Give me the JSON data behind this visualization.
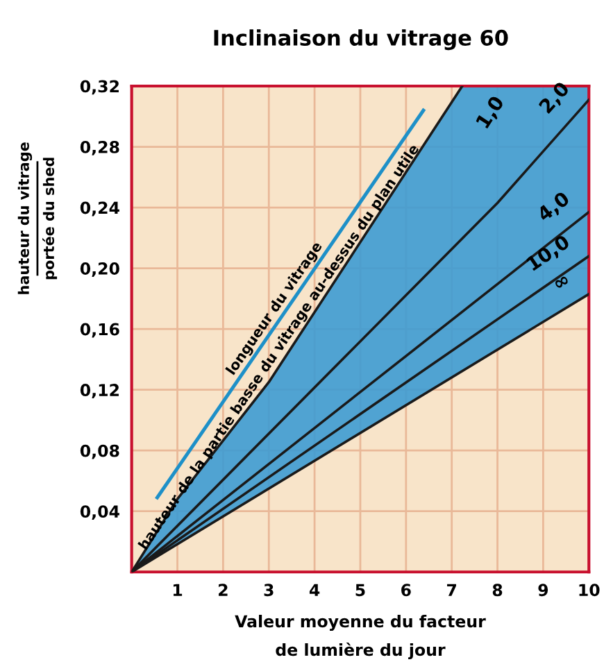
{
  "chart_data": {
    "type": "line",
    "title": "Inclinaison du vitrage 60",
    "xlabel": "Valeur moyenne du facteur\nde lumière du jour",
    "ylabel": "hauteur du vitrage\nportée du shed",
    "xlim": [
      0,
      10
    ],
    "ylim": [
      0,
      0.32
    ],
    "xticks": [
      {
        "value": 0,
        "label": null
      },
      1,
      2,
      3,
      4,
      5,
      6,
      7,
      8,
      9,
      10
    ],
    "yticks": [
      {
        "value": 0,
        "label": null
      },
      {
        "value": 0.04,
        "label": "0,04"
      },
      {
        "value": 0.08,
        "label": "0,08"
      },
      {
        "value": 0.12,
        "label": "0,12"
      },
      {
        "value": 0.16,
        "label": "0,16"
      },
      {
        "value": 0.2,
        "label": "0,20"
      },
      {
        "value": 0.24,
        "label": "0,24"
      },
      {
        "value": 0.28,
        "label": "0,28"
      },
      {
        "value": 0.32,
        "label": "0,32"
      }
    ],
    "grid": true,
    "marker": "none",
    "line_style": "solid",
    "series": [
      {
        "name": "1,0",
        "color": "#1a1a1a",
        "x": [
          0,
          1,
          3,
          7.23
        ],
        "values": [
          0,
          0.048,
          0.125,
          0.32
        ]
      },
      {
        "name": "2,0",
        "color": "#1a1a1a",
        "x": [
          0,
          8,
          10
        ],
        "values": [
          0,
          0.243,
          0.311
        ]
      },
      {
        "name": "4,0",
        "color": "#1a1a1a",
        "x": [
          0,
          10
        ],
        "values": [
          0,
          0.237
        ]
      },
      {
        "name": "10,0",
        "color": "#1a1a1a",
        "x": [
          0,
          10
        ],
        "values": [
          0,
          0.208
        ]
      },
      {
        "name": "∞",
        "color": "#1a1a1a",
        "x": [
          0,
          10
        ],
        "values": [
          0,
          0.183
        ]
      },
      {
        "color": "#1e90c8",
        "x": [
          0.56,
          6.38
        ],
        "values": [
          0.049,
          0.304
        ]
      }
    ],
    "annotations": [
      "longueur du vitrage",
      "hauteur de la partie basse du vitrage au-dessus du plan utile"
    ]
  }
}
